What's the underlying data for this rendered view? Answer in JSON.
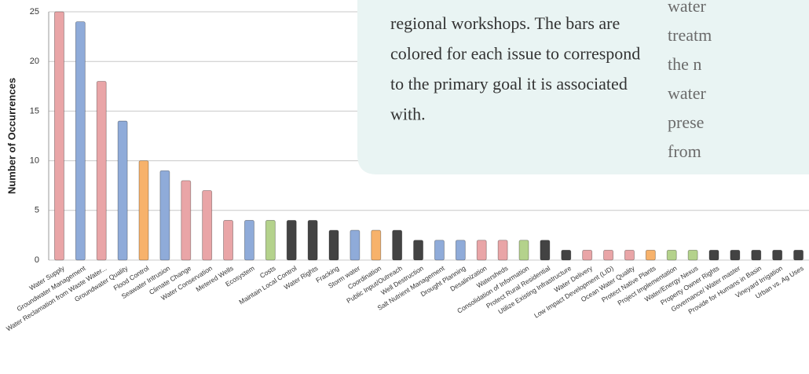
{
  "chart_data": {
    "type": "bar",
    "y_axis_label": "Number of Occurrences",
    "categories": [
      "Water Supply",
      "Groundwater Management",
      "Water Reclamation from Waste Water...",
      "Groundwater Quality",
      "Flood Control",
      "Seawater Intrusion",
      "Climate Change",
      "Water Conservation",
      "Metered Wells",
      "Ecosystem",
      "Costs",
      "Maintain Local Control",
      "Water Rights",
      "Fracking",
      "Storm water",
      "Coordination",
      "Public Input/Outreach",
      "Well Destruction",
      "Salt Nutrient Management",
      "Drought Planning",
      "Desalinization",
      "Watersheds",
      "Consolidation of Information",
      "Protect Rural Residential",
      "Utilize Existing Infrastructure",
      "Water Delivery",
      "Low Impact Development (LID)",
      "Ocean Water Quality",
      "Protect Native Plants",
      "Project Implementation",
      "Water/Energy Nexus",
      "Property Owner Rights",
      "Governance/  Water master",
      "Provide for Humans in Basin",
      "Vineyard Irrigation",
      "Urban vs. Ag Uses"
    ],
    "values": [
      25,
      24,
      18,
      14,
      10,
      9,
      8,
      7,
      4,
      4,
      4,
      4,
      4,
      3,
      3,
      3,
      3,
      2,
      2,
      2,
      2,
      2,
      2,
      2,
      1,
      1,
      1,
      1,
      1,
      1,
      1,
      1,
      1,
      1,
      1,
      1
    ],
    "colors": [
      "#e9a5a7",
      "#8fabd9",
      "#e9a5a7",
      "#8fabd9",
      "#f7b26b",
      "#8fabd9",
      "#e9a5a7",
      "#e9a5a7",
      "#e9a5a7",
      "#8fabd9",
      "#b4d28c",
      "#434343",
      "#434343",
      "#434343",
      "#8fabd9",
      "#f7b26b",
      "#434343",
      "#434343",
      "#8fabd9",
      "#8fabd9",
      "#e9a5a7",
      "#e9a5a7",
      "#b4d28c",
      "#434343",
      "#434343",
      "#e9a5a7",
      "#e9a5a7",
      "#e9a5a7",
      "#f7b26b",
      "#b4d28c",
      "#b4d28c",
      "#434343",
      "#434343",
      "#434343",
      "#434343",
      "#434343"
    ],
    "ylim": [
      0,
      25
    ],
    "yticks": [
      0,
      5,
      10,
      15,
      20,
      25
    ],
    "grid": true
  },
  "text_box": {
    "lines": [
      "regional workshops.  The bars are",
      "colored for each issue to correspond",
      "to the primary goal it is associated",
      "with."
    ]
  },
  "side_text": {
    "lines": [
      "water",
      "treatm",
      "the n",
      "water",
      "prese",
      "from"
    ]
  }
}
